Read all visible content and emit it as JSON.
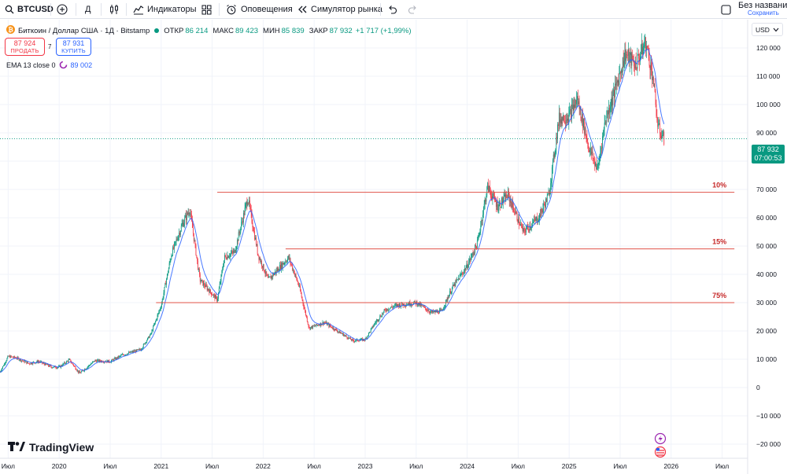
{
  "toolbar": {
    "symbol": "BTCUSD",
    "interval": "Д",
    "indicators_label": "Индикаторы",
    "alerts_label": "Оповещения",
    "replay_label": "Симулятор рынка",
    "layout_title": "Без названия",
    "layout_status": "Сохранить"
  },
  "icons": {
    "search": "search-icon",
    "add": "plus-circle-icon",
    "chart_type": "candles-icon",
    "indicators": "indicators-icon",
    "layouts": "layout-grid-icon",
    "alerts": "alarm-clock-icon",
    "replay": "rewind-icon",
    "undo": "undo-icon",
    "redo": "redo-icon",
    "layout_checkbox": "checkbox-icon"
  },
  "legend": {
    "title": "Биткоин / Доллар США · 1Д · Bitstamp",
    "open_label": "ОТКР",
    "open": "86 214",
    "high_label": "МАКС",
    "high": "89 423",
    "low_label": "МИН",
    "low": "85 839",
    "close_label": "ЗАКР",
    "close": "87 932",
    "change": "+1 717 (+1,99%)"
  },
  "trade": {
    "sell_price": "87 924",
    "sell_label": "ПРОДАТЬ",
    "spread": "7",
    "buy_price": "87 931",
    "buy_label": "КУПИТЬ"
  },
  "ema": {
    "label": "EMA 13 close 0",
    "value": "89 002"
  },
  "price_scale": {
    "currency": "USD",
    "last_price": "87 932",
    "countdown": "07:00:53",
    "ticks": [
      "120 000",
      "110 000",
      "100 000",
      "90 000",
      "80 000",
      "70 000",
      "60 000",
      "50 000",
      "40 000",
      "30 000",
      "20 000",
      "10 000",
      "0",
      "−10 000",
      "−20 000"
    ]
  },
  "time_axis": {
    "labels": [
      "Июл",
      "2020",
      "Июл",
      "2021",
      "Июл",
      "2022",
      "Июл",
      "2023",
      "Июл",
      "2024",
      "Июл",
      "2025",
      "Июл",
      "2026",
      "Июл"
    ]
  },
  "brand": {
    "name": "TradingView"
  },
  "colors": {
    "up": "#089981",
    "down": "#f23645",
    "accent": "#2962ff",
    "level_line": "#e0534a",
    "level_text": "#c62828"
  },
  "chart_data": {
    "type": "candlestick",
    "title": "Биткоин / Доллар США · 1Д · Bitstamp",
    "ylim": [
      -25000,
      130000
    ],
    "y_ticks": [
      120000,
      110000,
      100000,
      90000,
      80000,
      70000,
      60000,
      50000,
      40000,
      30000,
      20000,
      10000,
      0,
      -10000,
      -20000
    ],
    "x_range": [
      2019.42,
      2026.75
    ],
    "x_ticks": [
      2019.5,
      2020,
      2020.5,
      2021,
      2021.5,
      2022,
      2022.5,
      2023,
      2023.5,
      2024,
      2024.5,
      2025,
      2025.5,
      2026,
      2026.5
    ],
    "price_path": [
      [
        2019.42,
        5500
      ],
      [
        2019.5,
        11000
      ],
      [
        2019.58,
        10500
      ],
      [
        2019.7,
        8500
      ],
      [
        2019.8,
        9200
      ],
      [
        2019.92,
        7300
      ],
      [
        2020.0,
        7200
      ],
      [
        2020.1,
        9800
      ],
      [
        2020.2,
        5000
      ],
      [
        2020.35,
        9500
      ],
      [
        2020.5,
        9200
      ],
      [
        2020.62,
        11500
      ],
      [
        2020.8,
        13500
      ],
      [
        2020.9,
        19000
      ],
      [
        2021.0,
        29000
      ],
      [
        2021.1,
        47000
      ],
      [
        2021.2,
        57000
      ],
      [
        2021.28,
        63000
      ],
      [
        2021.38,
        38000
      ],
      [
        2021.55,
        31000
      ],
      [
        2021.62,
        46000
      ],
      [
        2021.72,
        48000
      ],
      [
        2021.85,
        67000
      ],
      [
        2021.95,
        47000
      ],
      [
        2022.05,
        38000
      ],
      [
        2022.25,
        46000
      ],
      [
        2022.35,
        36000
      ],
      [
        2022.45,
        21000
      ],
      [
        2022.6,
        23000
      ],
      [
        2022.75,
        19500
      ],
      [
        2022.88,
        16500
      ],
      [
        2023.0,
        17000
      ],
      [
        2023.1,
        23000
      ],
      [
        2023.2,
        27500
      ],
      [
        2023.3,
        29000
      ],
      [
        2023.5,
        30000
      ],
      [
        2023.65,
        26500
      ],
      [
        2023.75,
        27000
      ],
      [
        2023.85,
        35000
      ],
      [
        2024.0,
        43000
      ],
      [
        2024.1,
        51000
      ],
      [
        2024.2,
        71000
      ],
      [
        2024.3,
        64000
      ],
      [
        2024.4,
        68000
      ],
      [
        2024.55,
        55000
      ],
      [
        2024.7,
        60000
      ],
      [
        2024.8,
        68000
      ],
      [
        2024.9,
        95000
      ],
      [
        2025.0,
        96000
      ],
      [
        2025.08,
        102000
      ],
      [
        2025.2,
        84000
      ],
      [
        2025.28,
        77000
      ],
      [
        2025.35,
        94000
      ],
      [
        2025.45,
        105000
      ],
      [
        2025.55,
        118000
      ],
      [
        2025.65,
        114000
      ],
      [
        2025.75,
        122000
      ],
      [
        2025.82,
        110000
      ],
      [
        2025.87,
        92000
      ],
      [
        2025.93,
        87932
      ]
    ],
    "ema": {
      "period": 13,
      "source": "close",
      "last": 89002
    },
    "last_price": 87932,
    "levels": [
      {
        "label": "10%",
        "price": 69000,
        "x_start": 2021.55,
        "x_end": 2026.62
      },
      {
        "label": "15%",
        "price": 49000,
        "x_start": 2022.22,
        "x_end": 2026.62
      },
      {
        "label": "75%",
        "price": 30000,
        "x_start": 2020.95,
        "x_end": 2026.62
      }
    ]
  }
}
